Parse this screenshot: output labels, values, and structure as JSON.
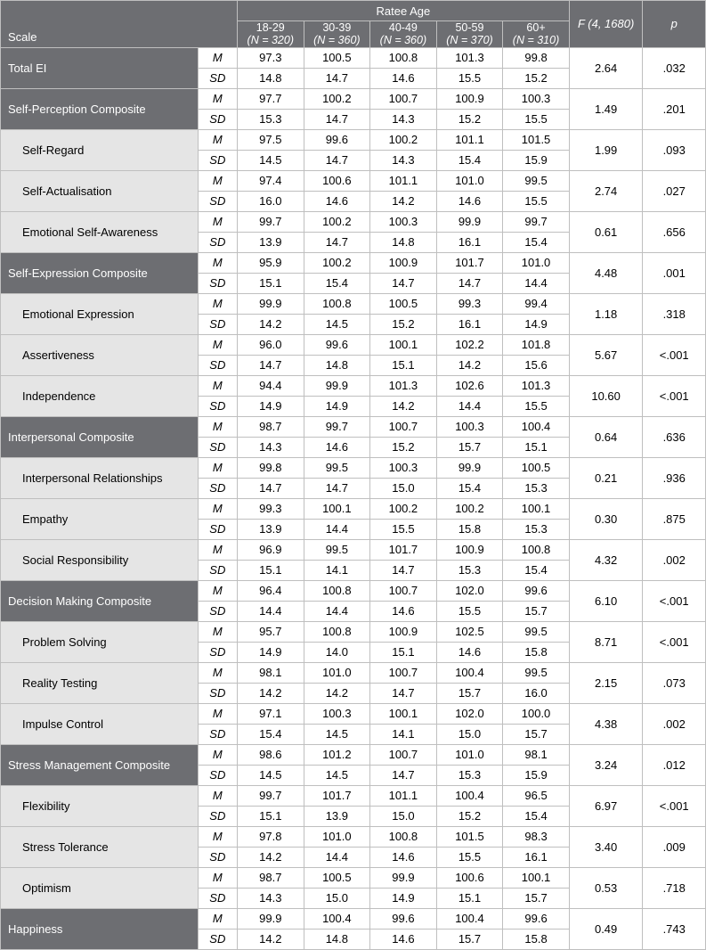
{
  "header": {
    "scale_label": "Scale",
    "ratee_age_label": "Ratee Age",
    "f_label": "F (4, 1680)",
    "p_label": "p",
    "age_groups": [
      {
        "label": "18-29",
        "n": "(N = 320)"
      },
      {
        "label": "30-39",
        "n": "(N = 360)"
      },
      {
        "label": "40-49",
        "n": "(N = 360)"
      },
      {
        "label": "50-59",
        "n": "(N = 370)"
      },
      {
        "label": "60+",
        "n": "(N = 310)"
      }
    ]
  },
  "stat_labels": {
    "m": "M",
    "sd": "SD"
  },
  "rows": [
    {
      "name": "Total EI",
      "type": "comp",
      "sub": false,
      "m": [
        "97.3",
        "100.5",
        "100.8",
        "101.3",
        "99.8"
      ],
      "sd": [
        "14.8",
        "14.7",
        "14.6",
        "15.5",
        "15.2"
      ],
      "f": "2.64",
      "p": ".032"
    },
    {
      "name": "Self-Perception Composite",
      "type": "comp",
      "sub": false,
      "m": [
        "97.7",
        "100.2",
        "100.7",
        "100.9",
        "100.3"
      ],
      "sd": [
        "15.3",
        "14.7",
        "14.3",
        "15.2",
        "15.5"
      ],
      "f": "1.49",
      "p": ".201"
    },
    {
      "name": "Self-Regard",
      "type": "sub",
      "sub": true,
      "m": [
        "97.5",
        "99.6",
        "100.2",
        "101.1",
        "101.5"
      ],
      "sd": [
        "14.5",
        "14.7",
        "14.3",
        "15.4",
        "15.9"
      ],
      "f": "1.99",
      "p": ".093"
    },
    {
      "name": "Self-Actualisation",
      "type": "sub",
      "sub": true,
      "m": [
        "97.4",
        "100.6",
        "101.1",
        "101.0",
        "99.5"
      ],
      "sd": [
        "16.0",
        "14.6",
        "14.2",
        "14.6",
        "15.5"
      ],
      "f": "2.74",
      "p": ".027"
    },
    {
      "name": "Emotional Self-Awareness",
      "type": "sub",
      "sub": true,
      "m": [
        "99.7",
        "100.2",
        "100.3",
        "99.9",
        "99.7"
      ],
      "sd": [
        "13.9",
        "14.7",
        "14.8",
        "16.1",
        "15.4"
      ],
      "f": "0.61",
      "p": ".656"
    },
    {
      "name": "Self-Expression Composite",
      "type": "comp",
      "sub": false,
      "m": [
        "95.9",
        "100.2",
        "100.9",
        "101.7",
        "101.0"
      ],
      "sd": [
        "15.1",
        "15.4",
        "14.7",
        "14.7",
        "14.4"
      ],
      "f": "4.48",
      "p": ".001"
    },
    {
      "name": "Emotional Expression",
      "type": "sub",
      "sub": true,
      "m": [
        "99.9",
        "100.8",
        "100.5",
        "99.3",
        "99.4"
      ],
      "sd": [
        "14.2",
        "14.5",
        "15.2",
        "16.1",
        "14.9"
      ],
      "f": "1.18",
      "p": ".318"
    },
    {
      "name": "Assertiveness",
      "type": "sub",
      "sub": true,
      "m": [
        "96.0",
        "99.6",
        "100.1",
        "102.2",
        "101.8"
      ],
      "sd": [
        "14.7",
        "14.8",
        "15.1",
        "14.2",
        "15.6"
      ],
      "f": "5.67",
      "p": "<.001"
    },
    {
      "name": "Independence",
      "type": "sub",
      "sub": true,
      "m": [
        "94.4",
        "99.9",
        "101.3",
        "102.6",
        "101.3"
      ],
      "sd": [
        "14.9",
        "14.9",
        "14.2",
        "14.4",
        "15.5"
      ],
      "f": "10.60",
      "p": "<.001"
    },
    {
      "name": "Interpersonal Composite",
      "type": "comp",
      "sub": false,
      "m": [
        "98.7",
        "99.7",
        "100.7",
        "100.3",
        "100.4"
      ],
      "sd": [
        "14.3",
        "14.6",
        "15.2",
        "15.7",
        "15.1"
      ],
      "f": "0.64",
      "p": ".636"
    },
    {
      "name": "Interpersonal Relationships",
      "type": "sub",
      "sub": true,
      "m": [
        "99.8",
        "99.5",
        "100.3",
        "99.9",
        "100.5"
      ],
      "sd": [
        "14.7",
        "14.7",
        "15.0",
        "15.4",
        "15.3"
      ],
      "f": "0.21",
      "p": ".936"
    },
    {
      "name": "Empathy",
      "type": "sub",
      "sub": true,
      "m": [
        "99.3",
        "100.1",
        "100.2",
        "100.2",
        "100.1"
      ],
      "sd": [
        "13.9",
        "14.4",
        "15.5",
        "15.8",
        "15.3"
      ],
      "f": "0.30",
      "p": ".875"
    },
    {
      "name": "Social Responsibility",
      "type": "sub",
      "sub": true,
      "m": [
        "96.9",
        "99.5",
        "101.7",
        "100.9",
        "100.8"
      ],
      "sd": [
        "15.1",
        "14.1",
        "14.7",
        "15.3",
        "15.4"
      ],
      "f": "4.32",
      "p": ".002"
    },
    {
      "name": "Decision Making Composite",
      "type": "comp",
      "sub": false,
      "m": [
        "96.4",
        "100.8",
        "100.7",
        "102.0",
        "99.6"
      ],
      "sd": [
        "14.4",
        "14.4",
        "14.6",
        "15.5",
        "15.7"
      ],
      "f": "6.10",
      "p": "<.001"
    },
    {
      "name": "Problem Solving",
      "type": "sub",
      "sub": true,
      "m": [
        "95.7",
        "100.8",
        "100.9",
        "102.5",
        "99.5"
      ],
      "sd": [
        "14.9",
        "14.0",
        "15.1",
        "14.6",
        "15.8"
      ],
      "f": "8.71",
      "p": "<.001"
    },
    {
      "name": "Reality Testing",
      "type": "sub",
      "sub": true,
      "m": [
        "98.1",
        "101.0",
        "100.7",
        "100.4",
        "99.5"
      ],
      "sd": [
        "14.2",
        "14.2",
        "14.7",
        "15.7",
        "16.0"
      ],
      "f": "2.15",
      "p": ".073"
    },
    {
      "name": "Impulse Control",
      "type": "sub",
      "sub": true,
      "m": [
        "97.1",
        "100.3",
        "100.1",
        "102.0",
        "100.0"
      ],
      "sd": [
        "15.4",
        "14.5",
        "14.1",
        "15.0",
        "15.7"
      ],
      "f": "4.38",
      "p": ".002"
    },
    {
      "name": "Stress Management Composite",
      "type": "comp",
      "sub": false,
      "m": [
        "98.6",
        "101.2",
        "100.7",
        "101.0",
        "98.1"
      ],
      "sd": [
        "14.5",
        "14.5",
        "14.7",
        "15.3",
        "15.9"
      ],
      "f": "3.24",
      "p": ".012"
    },
    {
      "name": "Flexibility",
      "type": "sub",
      "sub": true,
      "m": [
        "99.7",
        "101.7",
        "101.1",
        "100.4",
        "96.5"
      ],
      "sd": [
        "15.1",
        "13.9",
        "15.0",
        "15.2",
        "15.4"
      ],
      "f": "6.97",
      "p": "<.001"
    },
    {
      "name": "Stress Tolerance",
      "type": "sub",
      "sub": true,
      "m": [
        "97.8",
        "101.0",
        "100.8",
        "101.5",
        "98.3"
      ],
      "sd": [
        "14.2",
        "14.4",
        "14.6",
        "15.5",
        "16.1"
      ],
      "f": "3.40",
      "p": ".009"
    },
    {
      "name": "Optimism",
      "type": "sub",
      "sub": true,
      "m": [
        "98.7",
        "100.5",
        "99.9",
        "100.6",
        "100.1"
      ],
      "sd": [
        "14.3",
        "15.0",
        "14.9",
        "15.1",
        "15.7"
      ],
      "f": "0.53",
      "p": ".718"
    },
    {
      "name": "Happiness",
      "type": "comp",
      "sub": false,
      "m": [
        "99.9",
        "100.4",
        "99.6",
        "100.4",
        "99.6"
      ],
      "sd": [
        "14.2",
        "14.8",
        "14.6",
        "15.7",
        "15.8"
      ],
      "f": "0.49",
      "p": ".743"
    }
  ]
}
